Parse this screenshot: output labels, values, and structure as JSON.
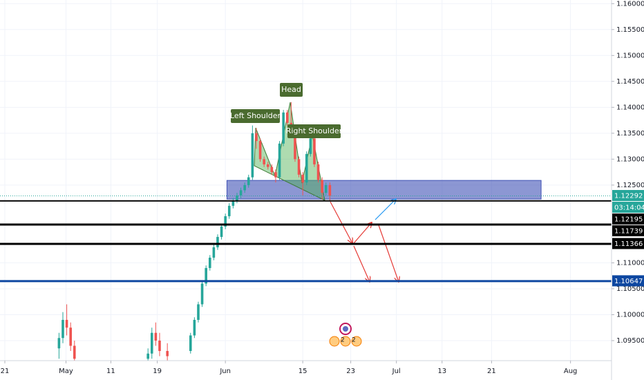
{
  "chart_data": {
    "type": "candlestick",
    "ylim": [
      1.0914,
      1.1607
    ],
    "yticks": [
      {
        "value": 1.16,
        "label": "1.16000"
      },
      {
        "value": 1.155,
        "label": "1.15500"
      },
      {
        "value": 1.15,
        "label": "1.15000"
      },
      {
        "value": 1.145,
        "label": "1.14500"
      },
      {
        "value": 1.14,
        "label": "1.14000"
      },
      {
        "value": 1.135,
        "label": "1.13500"
      },
      {
        "value": 1.13,
        "label": "1.13000"
      },
      {
        "value": 1.125,
        "label": "1.12500"
      },
      {
        "value": 1.11,
        "label": "1.11000"
      },
      {
        "value": 1.105,
        "label": "1.10500"
      },
      {
        "value": 1.1,
        "label": "1.10000"
      },
      {
        "value": 1.095,
        "label": "1.09500"
      }
    ],
    "xlim": [
      -0.625,
      78.4
    ],
    "xticks": [
      {
        "value": 0,
        "label": "21"
      },
      {
        "value": 7.9,
        "label": "May"
      },
      {
        "value": 13.7,
        "label": "11"
      },
      {
        "value": 19.7,
        "label": "19"
      },
      {
        "value": 28.5,
        "label": "Jun"
      },
      {
        "value": 38.5,
        "label": "15"
      },
      {
        "value": 44.7,
        "label": "23"
      },
      {
        "value": 50.6,
        "label": "Jul"
      },
      {
        "value": 56.5,
        "label": "13"
      },
      {
        "value": 62.9,
        "label": "21"
      },
      {
        "value": 73.1,
        "label": "Aug"
      }
    ],
    "grid": true,
    "up_color": "#26a69a",
    "down_color": "#ef5350",
    "candles": {
      "x": [
        7.0,
        7.5,
        8.0,
        8.5,
        9.0,
        18.5,
        19.0,
        19.5,
        20.0,
        21.0,
        24.0,
        24.5,
        25.0,
        25.5,
        26.0,
        26.5,
        27.0,
        27.5,
        28.0,
        28.5,
        29.0,
        29.5,
        30.0,
        30.5,
        31.0,
        31.5,
        32.0,
        32.5,
        33.0,
        33.5,
        34.0,
        34.5,
        35.0,
        35.5,
        36.0,
        36.5,
        37.0,
        37.5,
        38.0,
        38.5,
        39.0,
        39.5,
        40.0,
        40.5,
        41.0,
        41.5,
        42.0
      ],
      "open": [
        1.0935,
        1.0955,
        1.099,
        1.0975,
        1.094,
        1.0915,
        1.0925,
        1.0965,
        1.095,
        1.093,
        1.093,
        1.096,
        1.099,
        1.102,
        1.106,
        1.109,
        1.111,
        1.113,
        1.115,
        1.117,
        1.119,
        1.121,
        1.122,
        1.123,
        1.124,
        1.125,
        1.1265,
        1.135,
        1.1335,
        1.13,
        1.129,
        1.1285,
        1.1275,
        1.1265,
        1.133,
        1.139,
        1.137,
        1.1355,
        1.13,
        1.127,
        1.1255,
        1.131,
        1.134,
        1.129,
        1.126,
        1.1235,
        1.125
      ],
      "high": [
        1.0965,
        1.1005,
        1.102,
        1.0985,
        1.095,
        1.0935,
        1.0975,
        1.0985,
        1.0965,
        1.0945,
        1.0965,
        1.0995,
        1.1025,
        1.1065,
        1.1095,
        1.1115,
        1.1135,
        1.1155,
        1.1175,
        1.1195,
        1.1215,
        1.1225,
        1.1235,
        1.1245,
        1.1255,
        1.127,
        1.1365,
        1.136,
        1.134,
        1.1305,
        1.1295,
        1.129,
        1.128,
        1.1335,
        1.1395,
        1.1395,
        1.141,
        1.136,
        1.1305,
        1.1275,
        1.1315,
        1.135,
        1.1345,
        1.1295,
        1.1265,
        1.1255,
        1.1255
      ],
      "low": [
        1.0915,
        1.0945,
        1.096,
        1.093,
        1.0905,
        1.0905,
        1.0915,
        1.094,
        1.092,
        1.0912,
        1.0925,
        1.0955,
        1.0985,
        1.1015,
        1.1055,
        1.1085,
        1.1105,
        1.1125,
        1.1145,
        1.1165,
        1.1185,
        1.1205,
        1.1215,
        1.1225,
        1.1235,
        1.1245,
        1.126,
        1.132,
        1.1295,
        1.1285,
        1.128,
        1.127,
        1.1255,
        1.126,
        1.1325,
        1.1365,
        1.135,
        1.1295,
        1.1265,
        1.123,
        1.125,
        1.1305,
        1.1285,
        1.1255,
        1.1222,
        1.123,
        1.122
      ],
      "close": [
        1.0955,
        1.099,
        1.0975,
        1.094,
        1.0915,
        1.0925,
        1.0965,
        1.095,
        1.093,
        1.092,
        1.096,
        1.099,
        1.102,
        1.106,
        1.109,
        1.111,
        1.113,
        1.115,
        1.117,
        1.119,
        1.121,
        1.122,
        1.123,
        1.124,
        1.125,
        1.1265,
        1.135,
        1.1335,
        1.13,
        1.129,
        1.1285,
        1.1275,
        1.1265,
        1.133,
        1.139,
        1.137,
        1.1355,
        1.13,
        1.127,
        1.1255,
        1.131,
        1.134,
        1.129,
        1.126,
        1.1235,
        1.125,
        1.12292
      ]
    },
    "zone": {
      "top": 1.1259,
      "bottom": 1.1223,
      "x": [
        28.7,
        69.3
      ],
      "color": "#3f51b5"
    },
    "last_price": {
      "value": 1.12292,
      "color": "#26a69a"
    },
    "countdown": "03:14:04",
    "levels": [
      {
        "value": 1.12195,
        "color": "#000000"
      },
      {
        "value": 1.11739,
        "color": "#000000"
      },
      {
        "value": 1.11366,
        "color": "#000000"
      },
      {
        "value": 1.10647,
        "color": "#0d47a1"
      }
    ],
    "annotations": [
      "Left Shoulder",
      "Head",
      "Right Shoulder"
    ],
    "events": [
      "2",
      "2"
    ]
  }
}
